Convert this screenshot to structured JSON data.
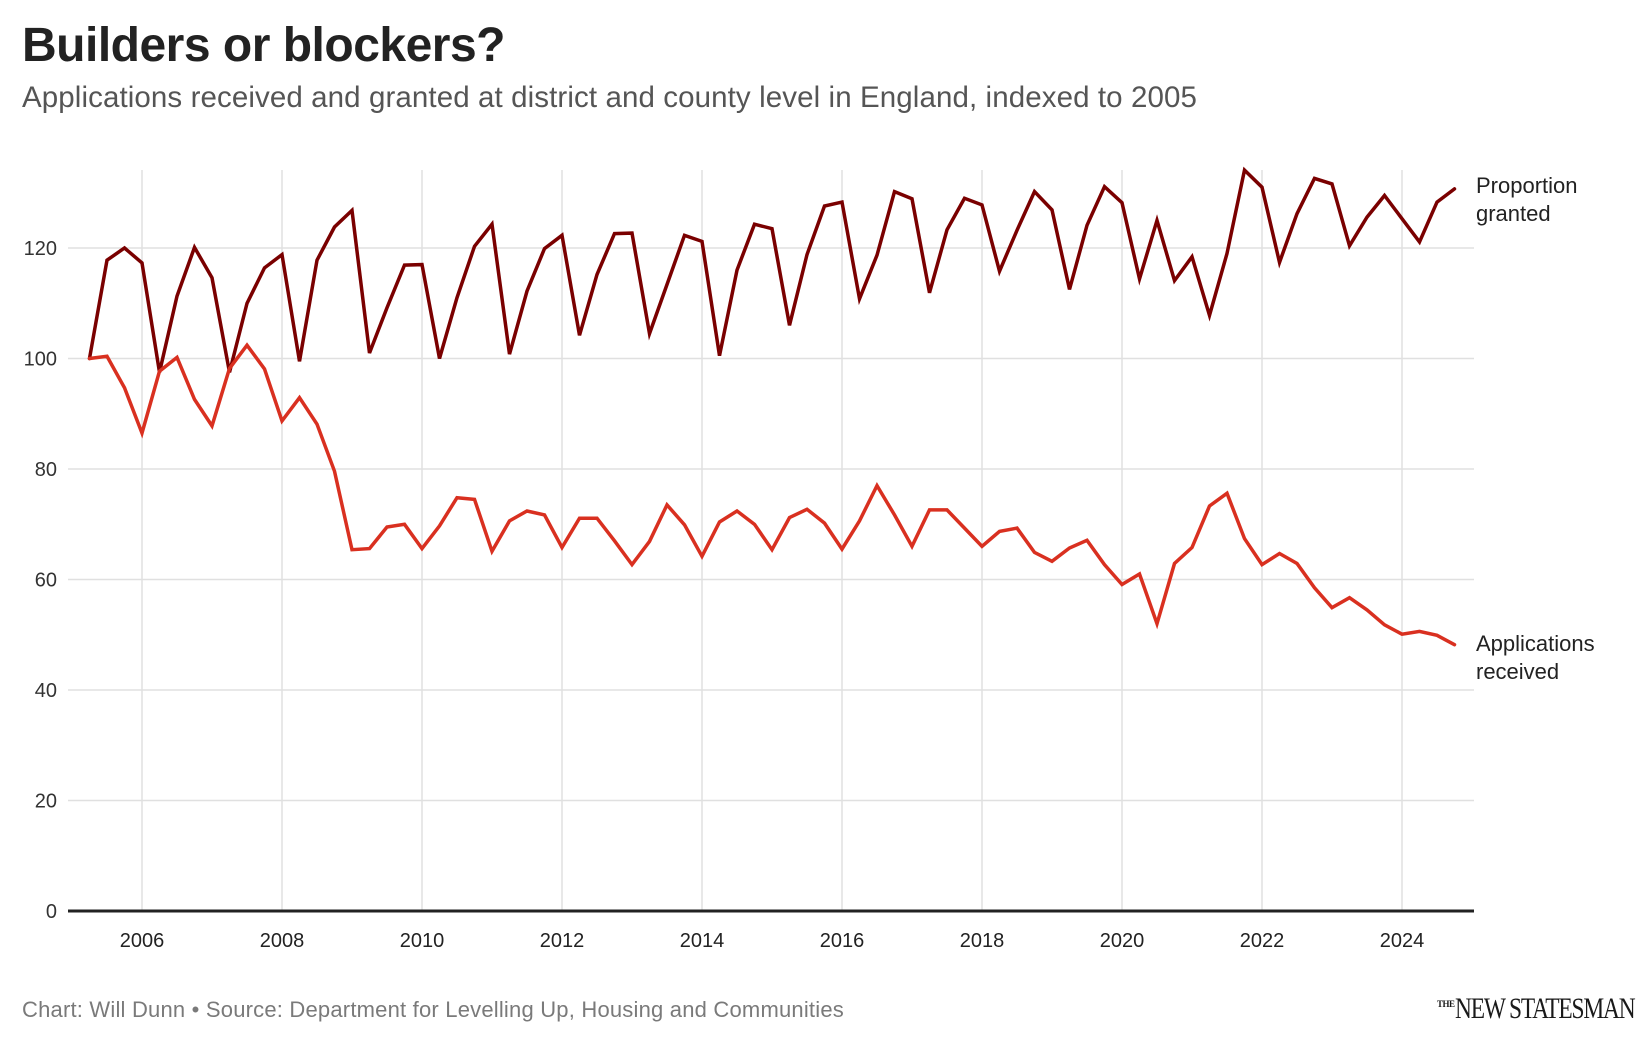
{
  "header": {
    "title": "Builders or blockers?",
    "subtitle": "Applications received and granted at district and county level in England, indexed to 2005"
  },
  "footer": {
    "credit": "Chart: Will Dunn • Source: Department for Levelling Up, Housing and Communities",
    "logo_prefix": "THE",
    "logo_main": "NEW STATESMAN"
  },
  "chart_data": {
    "type": "line",
    "title": "Builders or blockers?",
    "subtitle": "Applications received and granted at district and county level in England, indexed to 2005",
    "xlabel": "",
    "ylabel": "",
    "x_start": 2005.25,
    "x_step": 0.25,
    "xlim": [
      2005.0,
      2025.3
    ],
    "ylim": [
      0,
      134
    ],
    "yticks": [
      0,
      20,
      40,
      60,
      80,
      100,
      120
    ],
    "ytick_labels": [
      "0",
      "20",
      "40",
      "60",
      "80",
      "100",
      "120"
    ],
    "xticks": [
      2006,
      2008,
      2010,
      2012,
      2014,
      2016,
      2018,
      2020,
      2022,
      2024
    ],
    "xtick_labels": [
      "2006",
      "2008",
      "2010",
      "2012",
      "2014",
      "2016",
      "2018",
      "2020",
      "2022",
      "2024"
    ],
    "grid": true,
    "legend": "direct-labels-right",
    "series": [
      {
        "name": "Proportion granted",
        "label_lines": [
          "Proportion",
          "granted"
        ],
        "color": "#7a0000",
        "values": [
          100,
          117.8,
          120,
          117.3,
          97.5,
          111.3,
          120.1,
          114.6,
          97.5,
          110,
          116.4,
          118.8,
          99.5,
          117.8,
          123.8,
          126.8,
          101,
          109.2,
          116.9,
          117,
          100,
          111,
          120.3,
          124.3,
          100.8,
          112.2,
          119.9,
          122.3,
          104.2,
          115.2,
          122.6,
          122.7,
          104.5,
          113.4,
          122.3,
          121.2,
          100.5,
          116,
          124.3,
          123.5,
          106,
          118.8,
          127.6,
          128.3,
          110.8,
          118.7,
          130.2,
          128.9,
          111.9,
          123.3,
          129,
          127.8,
          115.8,
          123.2,
          130.2,
          126.9,
          112.5,
          124.1,
          131.1,
          128.2,
          114.4,
          125,
          114.1,
          118.4,
          107.8,
          119,
          134.1,
          131,
          117.4,
          126.2,
          132.6,
          131.6,
          120.4,
          125.6,
          129.5,
          125.3,
          121.1,
          128.3,
          130.7
        ]
      },
      {
        "name": "Applications received",
        "label_lines": [
          "Applications",
          "received"
        ],
        "color": "#d93020",
        "values": [
          100,
          100.4,
          94.7,
          86.5,
          97.7,
          100.2,
          92.6,
          87.8,
          98.2,
          102.4,
          98.1,
          88.7,
          92.9,
          88.1,
          79.6,
          65.4,
          65.6,
          69.5,
          70,
          65.6,
          69.7,
          74.8,
          74.5,
          65.1,
          70.6,
          72.4,
          71.7,
          65.8,
          71.1,
          71.1,
          67,
          62.7,
          66.9,
          73.5,
          69.9,
          64.2,
          70.4,
          72.4,
          70,
          65.4,
          71.2,
          72.7,
          70.2,
          65.5,
          70.6,
          77,
          71.7,
          66,
          72.6,
          72.6,
          69.3,
          66,
          68.7,
          69.3,
          64.9,
          63.3,
          65.7,
          67.1,
          62.7,
          59.1,
          61,
          52,
          62.9,
          65.8,
          73.3,
          75.6,
          67.4,
          62.7,
          64.7,
          62.9,
          58.5,
          54.9,
          56.7,
          54.5,
          51.8,
          50.1,
          50.6,
          49.9,
          48.2
        ]
      }
    ]
  }
}
